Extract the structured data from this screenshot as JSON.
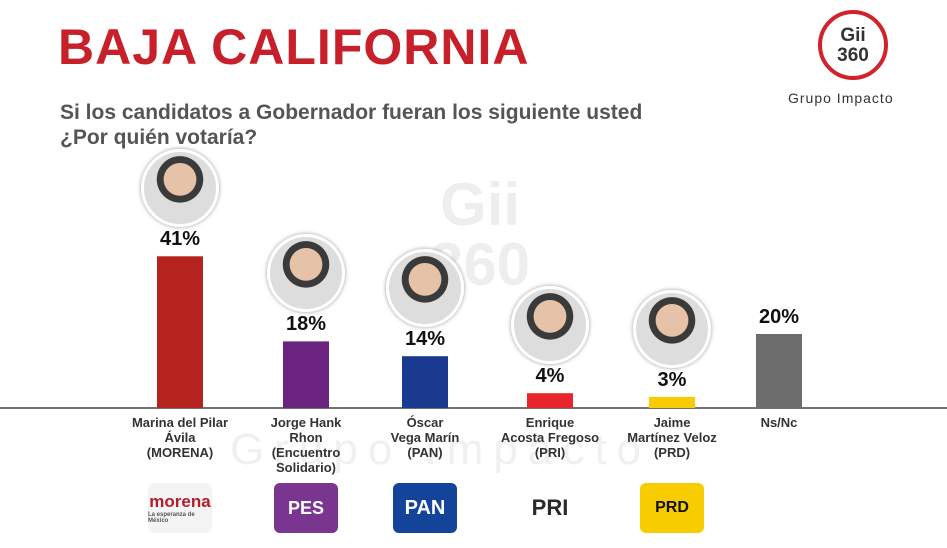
{
  "chart_data": {
    "type": "bar",
    "title": "BAJA CALIFORNIA",
    "subtitle": "Si los candidatos a Gobernador fueran los siguiente usted\n¿Por quién votaría?",
    "brand": {
      "logo_top": "Gii",
      "logo_bottom": "360",
      "name": "Grupo Impacto"
    },
    "categories": [
      "Marina del Pilar\nÁvila\n(MORENA)",
      "Jorge Hank\nRhon\n(Encuentro\nSolidario)",
      "Óscar\nVega Marín\n(PAN)",
      "Enrique\nAcosta Fregoso\n(PRI)",
      "Jaime\nMartínez Veloz\n(PRD)",
      "Ns/Nc"
    ],
    "values": [
      41,
      18,
      14,
      4,
      3,
      20
    ],
    "value_labels": [
      "41%",
      "18%",
      "14%",
      "4%",
      "3%",
      "20%"
    ],
    "colors": [
      "#b5231e",
      "#6b2380",
      "#1a3a8f",
      "#e8252a",
      "#f7cc00",
      "#6d6d6d"
    ],
    "parties": [
      "morena",
      "PES",
      "PAN",
      "PRI",
      "PRD",
      null
    ],
    "party_tagline": "La esperanza de México"
  }
}
